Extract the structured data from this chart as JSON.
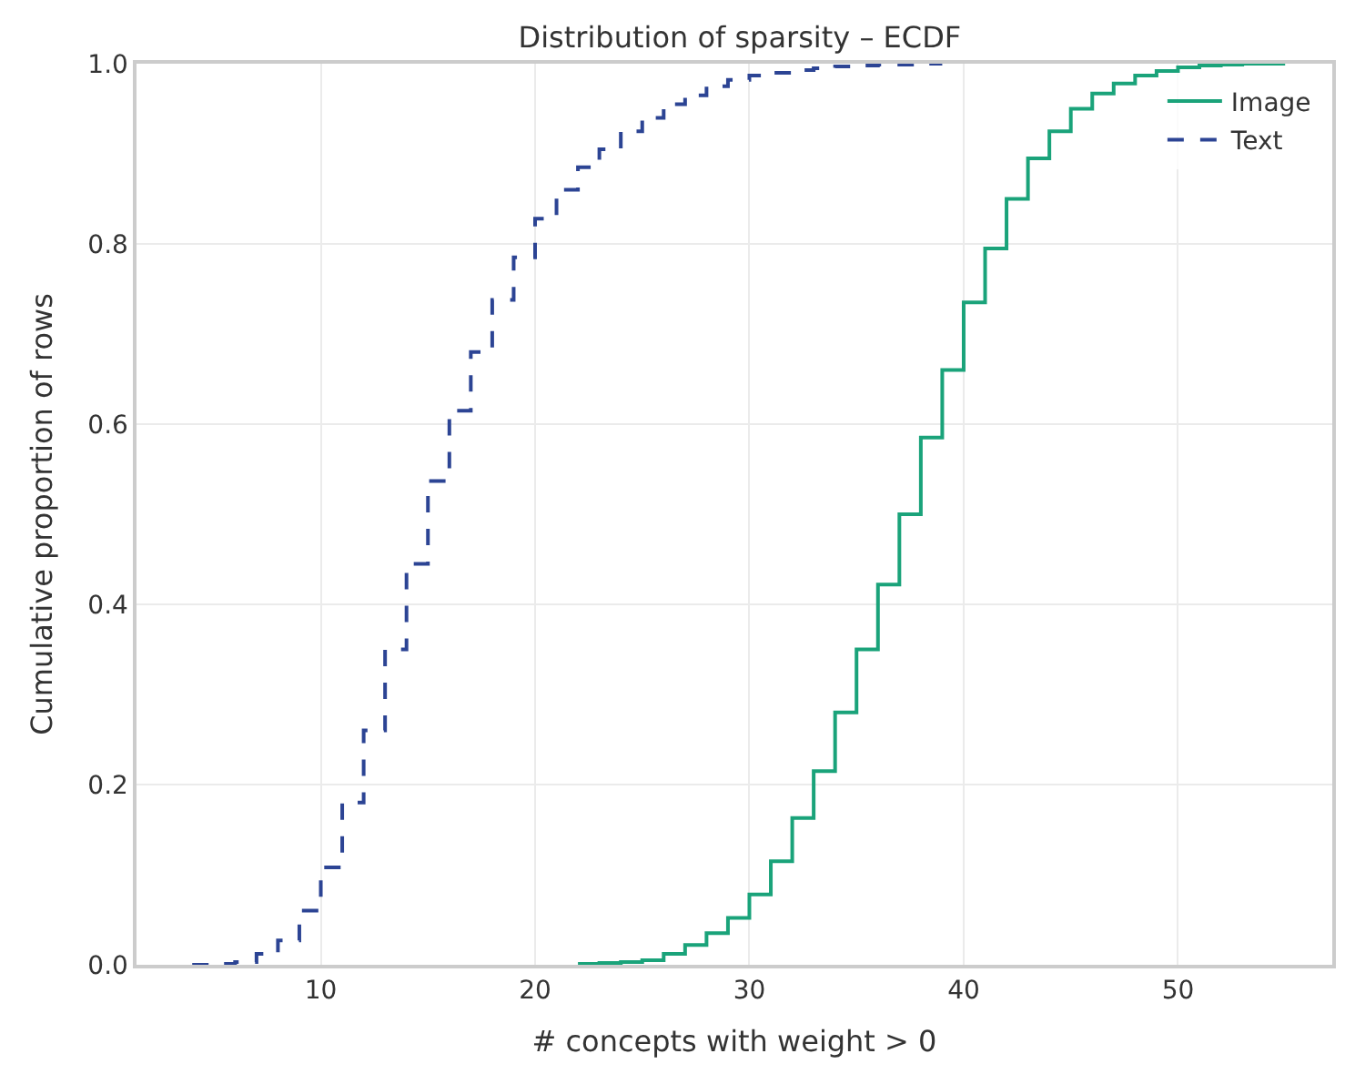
{
  "chart_data": {
    "type": "step",
    "title": "Distribution of sparsity – ECDF",
    "xlabel": "# concepts with weight > 0",
    "ylabel": "Cumulative proportion of rows",
    "xlim": [
      1.4,
      57.2
    ],
    "ylim": [
      0,
      1
    ],
    "xticks": [
      10,
      20,
      30,
      40,
      50
    ],
    "yticks": [
      {
        "value": 0,
        "label": "0.0"
      },
      {
        "value": 0.2,
        "label": "0.2"
      },
      {
        "value": 0.4,
        "label": "0.4"
      },
      {
        "value": 0.6,
        "label": "0.6"
      },
      {
        "value": 0.8,
        "label": "0.8"
      },
      {
        "value": 1,
        "label": "1.0"
      }
    ],
    "grid": true,
    "legend": "top right",
    "series": [
      {
        "name": "Image",
        "color": "#1aa37a",
        "line_style": "solid",
        "x": [
          22,
          23,
          24,
          25,
          26,
          27,
          28,
          29,
          30,
          31,
          32,
          33,
          34,
          35,
          36,
          37,
          38,
          39,
          40,
          41,
          42,
          43,
          44,
          45,
          46,
          47,
          48,
          49,
          50,
          51,
          52,
          53,
          55
        ],
        "values": [
          0.001,
          0.002,
          0.003,
          0.005,
          0.012,
          0.022,
          0.035,
          0.052,
          0.078,
          0.115,
          0.163,
          0.215,
          0.28,
          0.35,
          0.422,
          0.5,
          0.585,
          0.66,
          0.735,
          0.795,
          0.85,
          0.895,
          0.925,
          0.95,
          0.967,
          0.978,
          0.987,
          0.992,
          0.996,
          0.998,
          0.999,
          1.0,
          1.0
        ]
      },
      {
        "name": "Text",
        "color": "#2c4494",
        "line_style": "dashed",
        "x": [
          4,
          5,
          6,
          7,
          8,
          9,
          10,
          11,
          12,
          13,
          14,
          15,
          16,
          17,
          18,
          19,
          20,
          21,
          22,
          23,
          24,
          25,
          26,
          27,
          28,
          29,
          30,
          31,
          32,
          33,
          34,
          35,
          36,
          37,
          38,
          39
        ],
        "values": [
          0.0,
          0.001,
          0.003,
          0.012,
          0.027,
          0.06,
          0.108,
          0.18,
          0.26,
          0.35,
          0.445,
          0.537,
          0.615,
          0.68,
          0.738,
          0.785,
          0.828,
          0.86,
          0.885,
          0.905,
          0.925,
          0.94,
          0.955,
          0.965,
          0.975,
          0.982,
          0.987,
          0.99,
          0.993,
          0.995,
          0.997,
          0.998,
          0.999,
          0.999,
          1.0,
          1.0
        ]
      }
    ]
  }
}
